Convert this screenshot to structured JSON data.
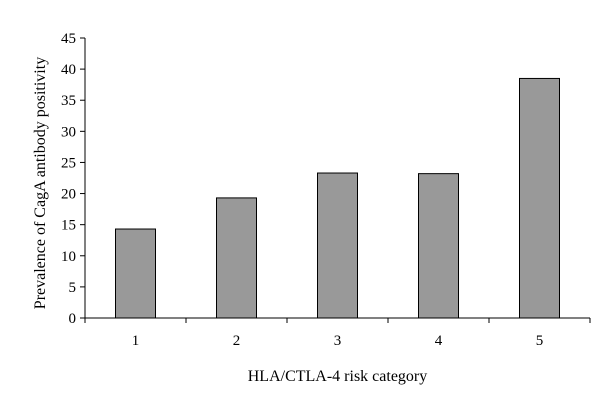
{
  "chart_data": {
    "type": "bar",
    "categories": [
      "1",
      "2",
      "3",
      "4",
      "5"
    ],
    "values": [
      14.3,
      19.3,
      23.3,
      23.2,
      38.5
    ],
    "xlabel": "HLA/CTLA-4 risk category",
    "ylabel": "Prevalence of CagA antibody positivity",
    "ylim": [
      0,
      45
    ],
    "yticks": [
      0,
      5,
      10,
      15,
      20,
      25,
      30,
      35,
      40,
      45
    ],
    "grid": false,
    "legend": "none",
    "bar_color": "#999999"
  }
}
